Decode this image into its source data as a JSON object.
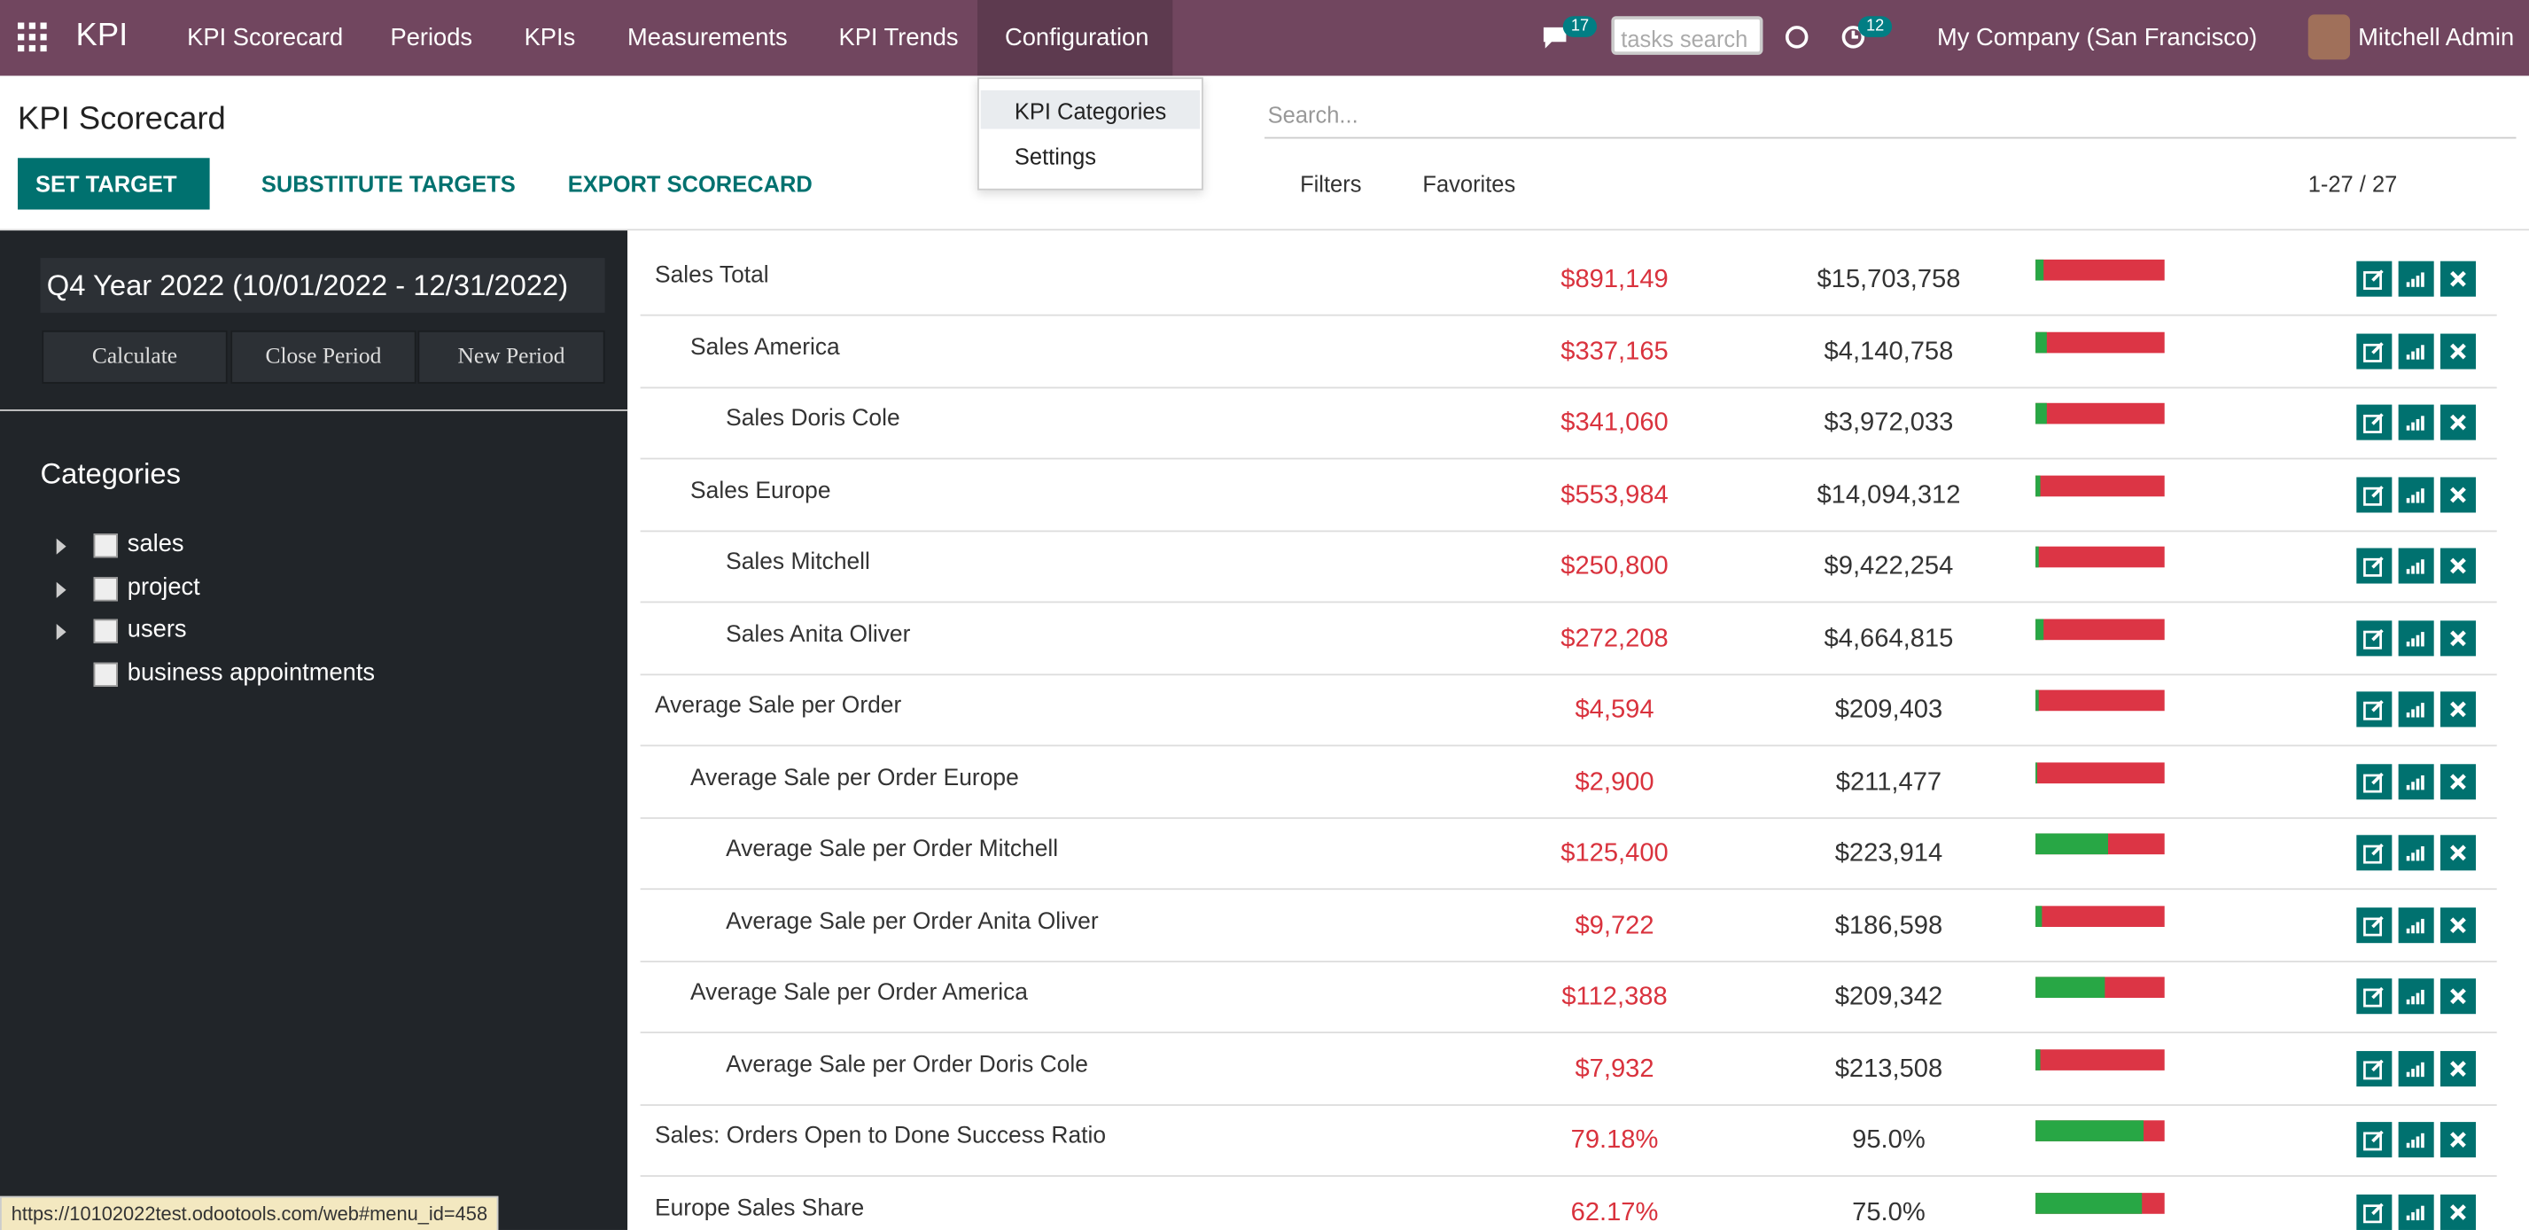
{
  "navbar": {
    "app": "KPI",
    "menu": [
      "KPI Scorecard",
      "Periods",
      "KPIs",
      "Measurements",
      "KPI Trends",
      "Configuration"
    ],
    "messages_count": 17,
    "search_placeholder": "tasks search",
    "activities_count": 12,
    "company": "My Company (San Francisco)",
    "user": "Mitchell Admin"
  },
  "dropdown": [
    "KPI Categories",
    "Settings"
  ],
  "control_panel": {
    "title": "KPI Scorecard",
    "buttons": [
      "SET TARGET",
      "SUBSTITUTE TARGETS",
      "EXPORT SCORECARD"
    ],
    "search_placeholder": "Search...",
    "filters": "Filters",
    "favorites": "Favorites",
    "pager": "1-27 / 27"
  },
  "sidebar": {
    "period": "Q4 Year 2022 (10/01/2022 - 12/31/2022)",
    "period_buttons": [
      "Calculate",
      "Close Period",
      "New Period"
    ],
    "categories_title": "Categories",
    "categories": [
      {
        "label": "sales",
        "expandable": true
      },
      {
        "label": "project",
        "expandable": true
      },
      {
        "label": "users",
        "expandable": true
      },
      {
        "label": "business appointments",
        "expandable": false
      }
    ]
  },
  "rows": [
    {
      "name": "Sales Total",
      "level": 0,
      "actual": {
        "value": 891149,
        "label": "$891,149"
      },
      "target": {
        "value": 15703758,
        "label": "$15,703,758"
      }
    },
    {
      "name": "Sales America",
      "level": 1,
      "actual": {
        "value": 337165,
        "label": "$337,165"
      },
      "target": {
        "value": 4140758,
        "label": "$4,140,758"
      }
    },
    {
      "name": "Sales Doris Cole",
      "level": 2,
      "actual": {
        "value": 341060,
        "label": "$341,060"
      },
      "target": {
        "value": 3972033,
        "label": "$3,972,033"
      }
    },
    {
      "name": "Sales Europe",
      "level": 1,
      "actual": {
        "value": 553984,
        "label": "$553,984"
      },
      "target": {
        "value": 14094312,
        "label": "$14,094,312"
      }
    },
    {
      "name": "Sales Mitchell",
      "level": 2,
      "actual": {
        "value": 250800,
        "label": "$250,800"
      },
      "target": {
        "value": 9422254,
        "label": "$9,422,254"
      }
    },
    {
      "name": "Sales Anita Oliver",
      "level": 2,
      "actual": {
        "value": 272208,
        "label": "$272,208"
      },
      "target": {
        "value": 4664815,
        "label": "$4,664,815"
      }
    },
    {
      "name": "Average Sale per Order",
      "level": 0,
      "actual": {
        "value": 4594,
        "label": "$4,594"
      },
      "target": {
        "value": 209403,
        "label": "$209,403"
      }
    },
    {
      "name": "Average Sale per Order Europe",
      "level": 1,
      "actual": {
        "value": 2900,
        "label": "$2,900"
      },
      "target": {
        "value": 211477,
        "label": "$211,477"
      }
    },
    {
      "name": "Average Sale per Order Mitchell",
      "level": 2,
      "actual": {
        "value": 125400,
        "label": "$125,400"
      },
      "target": {
        "value": 223914,
        "label": "$223,914"
      }
    },
    {
      "name": "Average Sale per Order Anita Oliver",
      "level": 2,
      "actual": {
        "value": 9722,
        "label": "$9,722"
      },
      "target": {
        "value": 186598,
        "label": "$186,598"
      }
    },
    {
      "name": "Average Sale per Order America",
      "level": 1,
      "actual": {
        "value": 112388,
        "label": "$112,388"
      },
      "target": {
        "value": 209342,
        "label": "$209,342"
      }
    },
    {
      "name": "Average Sale per Order Doris Cole",
      "level": 2,
      "actual": {
        "value": 7932,
        "label": "$7,932"
      },
      "target": {
        "value": 213508,
        "label": "$213,508"
      }
    },
    {
      "name": "Sales: Orders Open to Done Success Ratio",
      "level": 0,
      "actual": {
        "value": 79.18,
        "label": "79.18%"
      },
      "target": {
        "value": 95,
        "label": "95.0%"
      }
    },
    {
      "name": "Europe Sales Share",
      "level": 0,
      "actual": {
        "value": 62.17,
        "label": "62.17%"
      },
      "target": {
        "value": 75,
        "label": "75.0%"
      }
    }
  ],
  "status_url": "https://10102022test.odootools.com/web#menu_id=458"
}
